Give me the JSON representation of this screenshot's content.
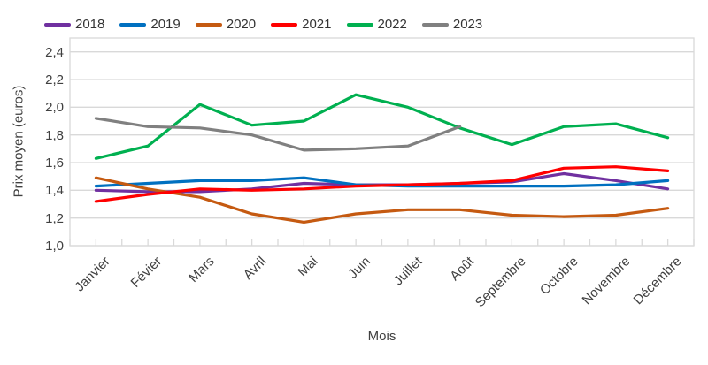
{
  "chart_data": {
    "type": "line",
    "title": "",
    "xlabel": "Mois",
    "ylabel": "Prix moyen (euros)",
    "categories": [
      "Janvier",
      "Févier",
      "Mars",
      "Avril",
      "Mai",
      "Juin",
      "Juillet",
      "Août",
      "Septembre",
      "Octobre",
      "Novembre",
      "Décembre"
    ],
    "series": [
      {
        "name": "2018",
        "color": "#7030A0",
        "values": [
          1.4,
          1.39,
          1.39,
          1.41,
          1.45,
          1.44,
          1.44,
          1.45,
          1.46,
          1.52,
          1.47,
          1.41
        ]
      },
      {
        "name": "2019",
        "color": "#0070C0",
        "values": [
          1.43,
          1.45,
          1.47,
          1.47,
          1.49,
          1.44,
          1.43,
          1.43,
          1.43,
          1.43,
          1.44,
          1.47
        ]
      },
      {
        "name": "2020",
        "color": "#C55A11",
        "values": [
          1.49,
          1.41,
          1.35,
          1.23,
          1.17,
          1.23,
          1.26,
          1.26,
          1.22,
          1.21,
          1.22,
          1.27
        ]
      },
      {
        "name": "2021",
        "color": "#FF0000",
        "values": [
          1.32,
          1.37,
          1.41,
          1.4,
          1.41,
          1.43,
          1.44,
          1.45,
          1.47,
          1.56,
          1.57,
          1.54
        ]
      },
      {
        "name": "2022",
        "color": "#00B050",
        "values": [
          1.63,
          1.72,
          2.02,
          1.87,
          1.9,
          2.09,
          2.0,
          1.85,
          1.73,
          1.86,
          1.88,
          1.78
        ]
      },
      {
        "name": "2023",
        "color": "#808080",
        "values": [
          1.92,
          1.86,
          1.85,
          1.8,
          1.69,
          1.7,
          1.72,
          1.86,
          null,
          null,
          null,
          null
        ]
      }
    ],
    "ylim": [
      1.0,
      2.5
    ],
    "ytick_step": 0.2,
    "ytick_labels": [
      "1,0",
      "1,2",
      "1,4",
      "1,6",
      "1,8",
      "2,0",
      "2,2",
      "2,4"
    ],
    "grid": true,
    "legend_position": "top",
    "grid_color": "#D9D9D9"
  }
}
